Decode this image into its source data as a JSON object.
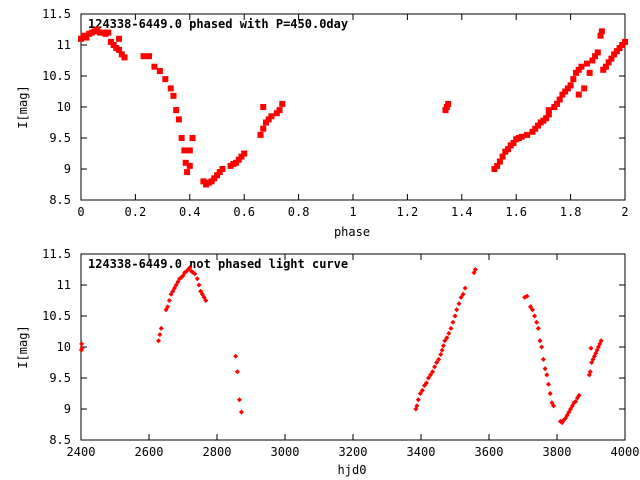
{
  "chart_data": [
    {
      "type": "scatter",
      "title": "124338-6449.0 phased with P=450.0day",
      "xlabel": "phase",
      "ylabel": "I[mag]",
      "xlim": [
        0,
        2
      ],
      "ylim": [
        11.5,
        8.5
      ],
      "y_inverted": true,
      "grid": false,
      "marker": "square",
      "color": "#ff0000",
      "x_ticks": [
        "0",
        "0.2",
        "0.4",
        "0.6",
        "0.8",
        "1",
        "1.2",
        "1.4",
        "1.6",
        "1.8",
        "2"
      ],
      "y_ticks": [
        "8.5",
        "9",
        "9.5",
        "10",
        "10.5",
        "11",
        "11.5"
      ],
      "points": [
        [
          0.0,
          11.1
        ],
        [
          0.01,
          11.15
        ],
        [
          0.02,
          11.12
        ],
        [
          0.03,
          11.18
        ],
        [
          0.04,
          11.2
        ],
        [
          0.05,
          11.22
        ],
        [
          0.06,
          11.25
        ],
        [
          0.07,
          11.2
        ],
        [
          0.08,
          11.2
        ],
        [
          0.09,
          11.18
        ],
        [
          0.1,
          11.2
        ],
        [
          0.11,
          11.05
        ],
        [
          0.12,
          11.0
        ],
        [
          0.13,
          10.95
        ],
        [
          0.14,
          10.92
        ],
        [
          0.14,
          11.1
        ],
        [
          0.15,
          10.85
        ],
        [
          0.16,
          10.8
        ],
        [
          0.23,
          10.82
        ],
        [
          0.25,
          10.82
        ],
        [
          0.27,
          10.65
        ],
        [
          0.29,
          10.58
        ],
        [
          0.31,
          10.45
        ],
        [
          0.33,
          10.3
        ],
        [
          0.34,
          10.18
        ],
        [
          0.35,
          9.95
        ],
        [
          0.36,
          9.8
        ],
        [
          0.37,
          9.5
        ],
        [
          0.38,
          9.3
        ],
        [
          0.385,
          9.1
        ],
        [
          0.39,
          8.95
        ],
        [
          0.4,
          9.05
        ],
        [
          0.4,
          9.3
        ],
        [
          0.41,
          9.5
        ],
        [
          0.45,
          8.8
        ],
        [
          0.46,
          8.75
        ],
        [
          0.47,
          8.78
        ],
        [
          0.48,
          8.8
        ],
        [
          0.49,
          8.85
        ],
        [
          0.5,
          8.9
        ],
        [
          0.51,
          8.95
        ],
        [
          0.52,
          9.0
        ],
        [
          0.55,
          9.05
        ],
        [
          0.56,
          9.08
        ],
        [
          0.57,
          9.1
        ],
        [
          0.58,
          9.15
        ],
        [
          0.59,
          9.2
        ],
        [
          0.6,
          9.25
        ],
        [
          0.66,
          9.55
        ],
        [
          0.67,
          9.65
        ],
        [
          0.68,
          9.75
        ],
        [
          0.69,
          9.8
        ],
        [
          0.7,
          9.85
        ],
        [
          0.72,
          9.9
        ],
        [
          0.73,
          9.95
        ],
        [
          0.74,
          10.05
        ],
        [
          0.67,
          10.0
        ],
        [
          1.34,
          9.95
        ],
        [
          1.345,
          10.0
        ],
        [
          1.35,
          10.05
        ],
        [
          1.52,
          9.0
        ],
        [
          1.53,
          9.05
        ],
        [
          1.54,
          9.12
        ],
        [
          1.55,
          9.2
        ],
        [
          1.56,
          9.28
        ],
        [
          1.57,
          9.32
        ],
        [
          1.58,
          9.38
        ],
        [
          1.59,
          9.42
        ],
        [
          1.6,
          9.48
        ],
        [
          1.61,
          9.5
        ],
        [
          1.62,
          9.52
        ],
        [
          1.64,
          9.55
        ],
        [
          1.66,
          9.6
        ],
        [
          1.67,
          9.65
        ],
        [
          1.68,
          9.7
        ],
        [
          1.69,
          9.75
        ],
        [
          1.7,
          9.78
        ],
        [
          1.71,
          9.82
        ],
        [
          1.72,
          9.88
        ],
        [
          1.72,
          9.95
        ],
        [
          1.74,
          10.0
        ],
        [
          1.75,
          10.05
        ],
        [
          1.76,
          10.12
        ],
        [
          1.77,
          10.2
        ],
        [
          1.78,
          10.25
        ],
        [
          1.79,
          10.3
        ],
        [
          1.8,
          10.35
        ],
        [
          1.81,
          10.45
        ],
        [
          1.82,
          10.55
        ],
        [
          1.83,
          10.6
        ],
        [
          1.84,
          10.65
        ],
        [
          1.86,
          10.7
        ],
        [
          1.87,
          10.55
        ],
        [
          1.83,
          10.2
        ],
        [
          1.85,
          10.3
        ],
        [
          1.88,
          10.75
        ],
        [
          1.89,
          10.82
        ],
        [
          1.9,
          10.88
        ],
        [
          1.91,
          11.15
        ],
        [
          1.915,
          11.22
        ],
        [
          1.92,
          10.6
        ],
        [
          1.93,
          10.65
        ],
        [
          1.94,
          10.72
        ],
        [
          1.95,
          10.78
        ],
        [
          1.96,
          10.85
        ],
        [
          1.97,
          10.9
        ],
        [
          1.98,
          10.95
        ],
        [
          1.99,
          11.0
        ],
        [
          2.0,
          11.05
        ]
      ]
    },
    {
      "type": "scatter",
      "title": "124338-6449.0 not phased light curve",
      "xlabel": "hjd0",
      "ylabel": "I[mag]",
      "xlim": [
        2400,
        4000
      ],
      "ylim": [
        11.5,
        8.5
      ],
      "y_inverted": true,
      "grid": false,
      "marker": "diamond",
      "color": "#ff0000",
      "x_ticks": [
        "2400",
        "2600",
        "2800",
        "3000",
        "3200",
        "3400",
        "3600",
        "3800",
        "4000"
      ],
      "y_ticks": [
        "8.5",
        "9",
        "9.5",
        "10",
        "10.5",
        "11",
        "11.5"
      ],
      "points": [
        [
          2401,
          9.95
        ],
        [
          2402,
          10.05
        ],
        [
          2403,
          9.98
        ],
        [
          2628,
          10.1
        ],
        [
          2632,
          10.2
        ],
        [
          2636,
          10.3
        ],
        [
          2650,
          10.6
        ],
        [
          2655,
          10.65
        ],
        [
          2660,
          10.75
        ],
        [
          2665,
          10.85
        ],
        [
          2670,
          10.9
        ],
        [
          2675,
          10.95
        ],
        [
          2680,
          11.0
        ],
        [
          2685,
          11.05
        ],
        [
          2690,
          11.1
        ],
        [
          2695,
          11.12
        ],
        [
          2700,
          11.15
        ],
        [
          2705,
          11.2
        ],
        [
          2710,
          11.22
        ],
        [
          2715,
          11.25
        ],
        [
          2720,
          11.28
        ],
        [
          2725,
          11.22
        ],
        [
          2730,
          11.2
        ],
        [
          2735,
          11.18
        ],
        [
          2742,
          11.1
        ],
        [
          2747,
          11.0
        ],
        [
          2752,
          10.9
        ],
        [
          2757,
          10.85
        ],
        [
          2762,
          10.8
        ],
        [
          2767,
          10.75
        ],
        [
          2855,
          9.85
        ],
        [
          2860,
          9.6
        ],
        [
          2866,
          9.15
        ],
        [
          2872,
          8.95
        ],
        [
          3385,
          9.0
        ],
        [
          3388,
          9.05
        ],
        [
          3392,
          9.15
        ],
        [
          3398,
          9.25
        ],
        [
          3404,
          9.3
        ],
        [
          3410,
          9.38
        ],
        [
          3416,
          9.42
        ],
        [
          3422,
          9.5
        ],
        [
          3428,
          9.55
        ],
        [
          3434,
          9.6
        ],
        [
          3440,
          9.68
        ],
        [
          3446,
          9.75
        ],
        [
          3452,
          9.8
        ],
        [
          3458,
          9.88
        ],
        [
          3462,
          9.95
        ],
        [
          3466,
          10.02
        ],
        [
          3470,
          10.1
        ],
        [
          3476,
          10.15
        ],
        [
          3482,
          10.22
        ],
        [
          3488,
          10.3
        ],
        [
          3494,
          10.4
        ],
        [
          3500,
          10.5
        ],
        [
          3505,
          10.6
        ],
        [
          3512,
          10.7
        ],
        [
          3518,
          10.8
        ],
        [
          3524,
          10.85
        ],
        [
          3530,
          10.95
        ],
        [
          3556,
          11.2
        ],
        [
          3560,
          11.25
        ],
        [
          3705,
          10.8
        ],
        [
          3712,
          10.82
        ],
        [
          3722,
          10.65
        ],
        [
          3728,
          10.6
        ],
        [
          3734,
          10.5
        ],
        [
          3740,
          10.4
        ],
        [
          3745,
          10.3
        ],
        [
          3750,
          10.1
        ],
        [
          3755,
          10.0
        ],
        [
          3760,
          9.8
        ],
        [
          3765,
          9.65
        ],
        [
          3770,
          9.55
        ],
        [
          3775,
          9.4
        ],
        [
          3780,
          9.25
        ],
        [
          3785,
          9.1
        ],
        [
          3790,
          9.05
        ],
        [
          3810,
          8.8
        ],
        [
          3815,
          8.78
        ],
        [
          3820,
          8.82
        ],
        [
          3825,
          8.85
        ],
        [
          3830,
          8.9
        ],
        [
          3835,
          8.95
        ],
        [
          3840,
          9.0
        ],
        [
          3845,
          9.05
        ],
        [
          3850,
          9.1
        ],
        [
          3855,
          9.12
        ],
        [
          3860,
          9.18
        ],
        [
          3865,
          9.22
        ],
        [
          3895,
          9.55
        ],
        [
          3898,
          9.6
        ],
        [
          3902,
          9.75
        ],
        [
          3906,
          9.8
        ],
        [
          3910,
          9.85
        ],
        [
          3914,
          9.9
        ],
        [
          3918,
          9.95
        ],
        [
          3922,
          10.0
        ],
        [
          3926,
          10.05
        ],
        [
          3900,
          9.98
        ],
        [
          3930,
          10.1
        ]
      ]
    }
  ]
}
